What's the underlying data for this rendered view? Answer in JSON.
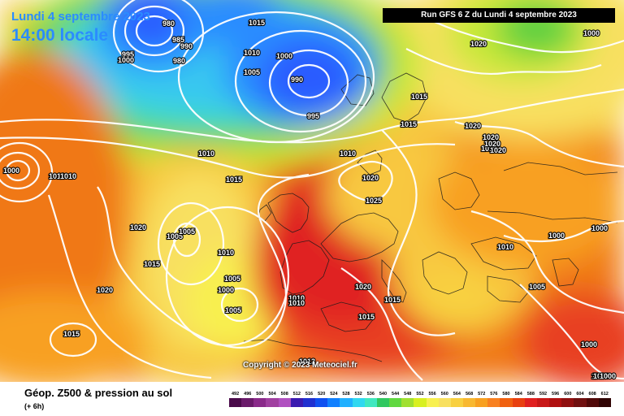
{
  "header": {
    "date_line": "Lundi 4 septembre 2023",
    "time_line": "14:00 locale",
    "run_info": "Run GFS 6 Z du Lundi 4 septembre 2023"
  },
  "copyright": "Copyright © 2023 Meteociel.fr",
  "legend": {
    "title": "Géop. Z500 & pression au sol",
    "subtitle": "(+ 6h)",
    "scale_values": [
      "492",
      "496",
      "500",
      "504",
      "508",
      "512",
      "516",
      "520",
      "524",
      "528",
      "532",
      "536",
      "540",
      "544",
      "548",
      "552",
      "556",
      "560",
      "564",
      "568",
      "572",
      "576",
      "580",
      "584",
      "588",
      "592",
      "596",
      "600",
      "604",
      "608",
      "612"
    ],
    "scale_colors": [
      "#4a0a4a",
      "#6a1a6a",
      "#8a2a8a",
      "#a040a0",
      "#b050c0",
      "#3a1ab0",
      "#2030d0",
      "#1050f0",
      "#1080ff",
      "#20b0ff",
      "#30d8f0",
      "#40e8c0",
      "#30c860",
      "#60d840",
      "#a0e030",
      "#d8f020",
      "#f8f050",
      "#f8e060",
      "#f8d040",
      "#f8b830",
      "#f8a020",
      "#f88020",
      "#f06010",
      "#e84010",
      "#e02020",
      "#c81818",
      "#b01010",
      "#901010",
      "#701010",
      "#500808",
      "#300404"
    ]
  },
  "map": {
    "colors": {
      "low_blue": "#2a5cff",
      "cyan": "#38c8f0",
      "teal": "#40e0c0",
      "green": "#60d040",
      "yellow_green": "#c8e838",
      "yellow": "#f8e860",
      "gold": "#f8c840",
      "orange": "#f8a020",
      "dark_orange": "#f07818",
      "red": "#e84020",
      "isobar": "#ffffff"
    },
    "pressure_labels": [
      "980",
      "985",
      "990",
      "980",
      "995",
      "1000",
      "1015",
      "1010",
      "1005",
      "1000",
      "990",
      "995",
      "1015",
      "1015",
      "1020",
      "1010",
      "1010",
      "1010",
      "1015",
      "1020",
      "1025",
      "1020",
      "1020",
      "1020",
      "1020",
      "1010",
      "1000",
      "1010",
      "1000",
      "1000",
      "1020",
      "1005",
      "1005",
      "1000",
      "1010",
      "1015",
      "1005",
      "1000",
      "1005",
      "1010",
      "1010",
      "1020",
      "1015",
      "1015",
      "1005",
      "1000",
      "1000",
      "1015",
      "1020",
      "1010",
      "1000",
      "1000",
      "1013",
      "1000"
    ]
  }
}
